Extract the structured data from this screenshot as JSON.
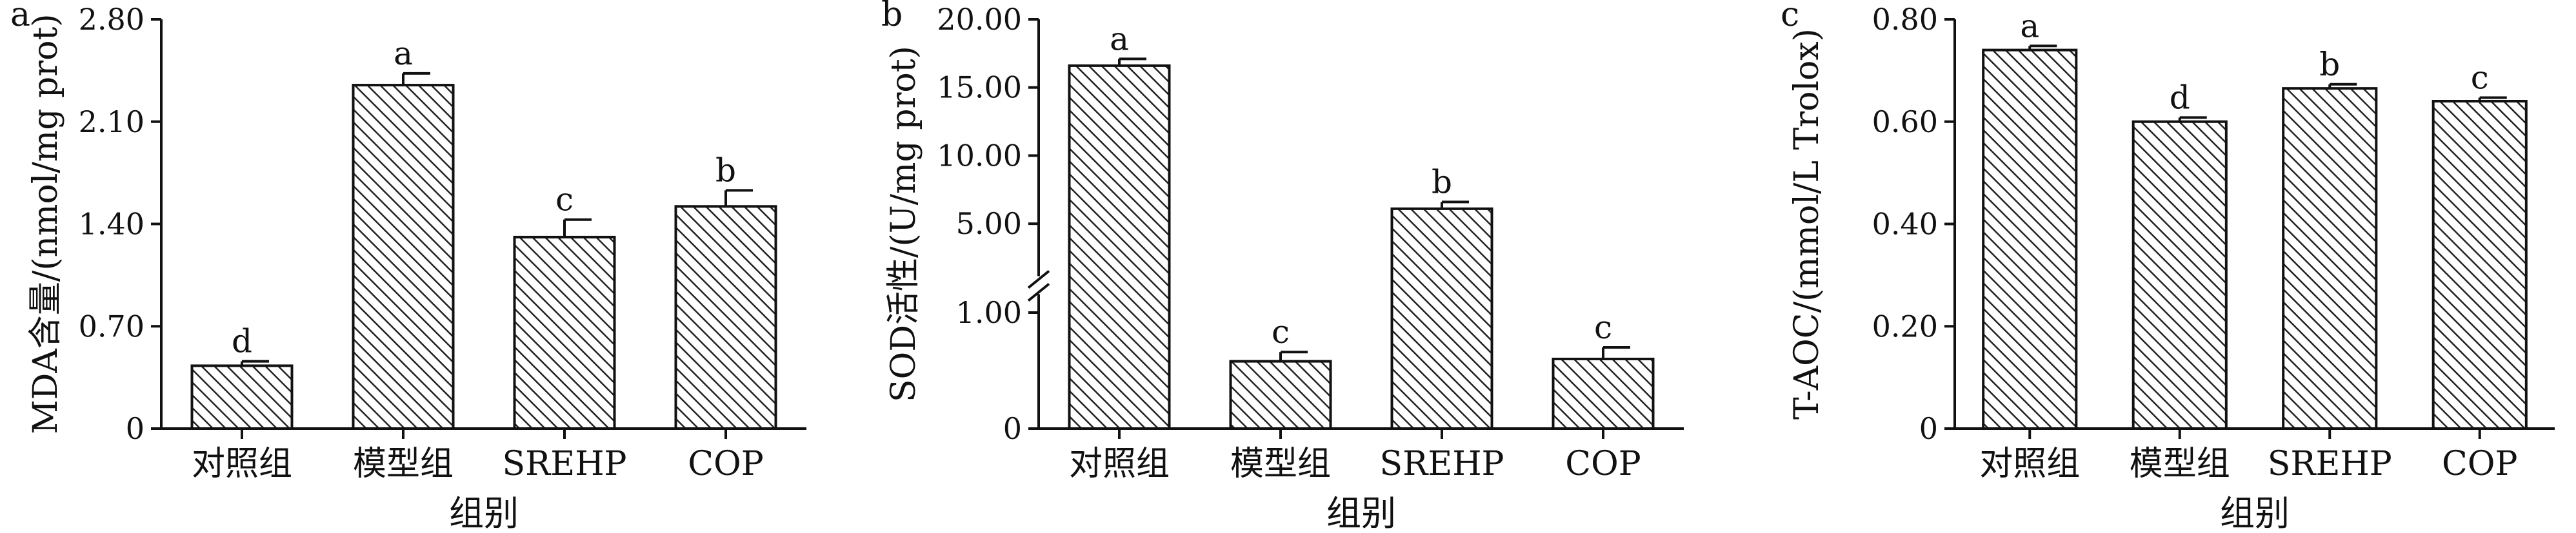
{
  "figure": {
    "panel_count": 3
  },
  "chart_data": [
    {
      "type": "bar",
      "panel_label": "a",
      "categories": [
        "对照组",
        "模型组",
        "SREHP",
        "COP"
      ],
      "values": [
        0.43,
        2.35,
        1.31,
        1.52
      ],
      "errors": [
        0.03,
        0.08,
        0.12,
        0.11
      ],
      "letters": [
        "d",
        "a",
        "c",
        "b"
      ],
      "ylabel": "MDA含量/(nmol/mg prot)",
      "xlabel": "组别",
      "ylim": [
        0,
        2.8
      ],
      "yticks": [
        0,
        0.7,
        1.4,
        2.1,
        2.8
      ],
      "ytick_labels": [
        "0",
        "0.70",
        "1.40",
        "2.10",
        "2.80"
      ],
      "hatch": "diagonal",
      "grid": false
    },
    {
      "type": "bar",
      "panel_label": "b",
      "categories": [
        "对照组",
        "模型组",
        "SREHP",
        "COP"
      ],
      "values": [
        16.6,
        0.58,
        6.1,
        0.6
      ],
      "errors": [
        0.5,
        0.08,
        0.5,
        0.1
      ],
      "letters": [
        "a",
        "c",
        "b",
        "c"
      ],
      "ylabel": "SOD活性/(U/mg prot)",
      "xlabel": "组别",
      "yticks": [
        0,
        1,
        5,
        10,
        15,
        20
      ],
      "ytick_labels": [
        "0",
        "1.00",
        "5.00",
        "10.00",
        "15.00",
        "20.00"
      ],
      "axis_break": [
        1,
        2.5
      ],
      "hatch": "diagonal",
      "grid": false
    },
    {
      "type": "bar",
      "panel_label": "c",
      "categories": [
        "对照组",
        "模型组",
        "SREHP",
        "COP"
      ],
      "values": [
        0.74,
        0.6,
        0.665,
        0.64
      ],
      "errors": [
        0.008,
        0.008,
        0.008,
        0.007
      ],
      "letters": [
        "a",
        "d",
        "b",
        "c"
      ],
      "ylabel": "T-AOC/(mmol/L Trolox)",
      "xlabel": "组别",
      "ylim": [
        0,
        0.8
      ],
      "yticks": [
        0,
        0.2,
        0.4,
        0.6,
        0.8
      ],
      "ytick_labels": [
        "0",
        "0.20",
        "0.40",
        "0.60",
        "0.80"
      ],
      "hatch": "diagonal",
      "grid": false
    }
  ]
}
